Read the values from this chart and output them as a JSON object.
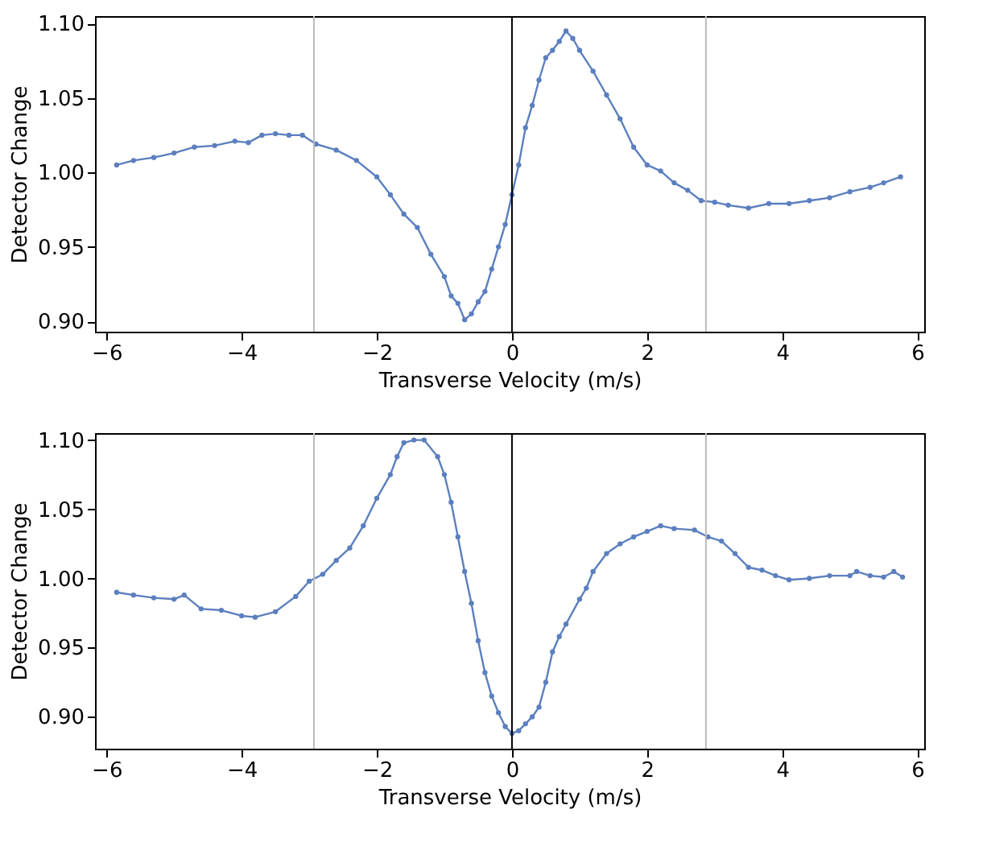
{
  "chart_data": [
    {
      "type": "line",
      "xlabel": "Transverse Velocity (m/s)",
      "ylabel": "Detector Change",
      "marker": "circle",
      "line_style": "solid",
      "grid": false,
      "xlim": [
        -6.17,
        6.1
      ],
      "ylim": [
        0.893,
        1.105
      ],
      "xticks": [
        -6,
        -4,
        -2,
        0,
        2,
        4,
        6
      ],
      "yticks": [
        {
          "value": 0.9,
          "label": "0.90"
        },
        {
          "value": 0.95,
          "label": "0.95"
        },
        {
          "value": 1.0,
          "label": "1.00"
        },
        {
          "value": 1.05,
          "label": "1.05"
        },
        {
          "value": 1.1,
          "label": "1.10"
        }
      ],
      "ref_lines": [
        {
          "axis": "x",
          "value": -2.93,
          "color": "#bbbbbb"
        },
        {
          "axis": "x",
          "value": 0,
          "color": "#000000"
        },
        {
          "axis": "x",
          "value": 2.87,
          "color": "#bbbbbb"
        }
      ],
      "series": [
        {
          "color": "#5b7fbf",
          "x": [
            -5.85,
            -5.6,
            -5.3,
            -5.0,
            -4.7,
            -4.4,
            -4.1,
            -3.9,
            -3.7,
            -3.5,
            -3.3,
            -3.1,
            -2.9,
            -2.6,
            -2.3,
            -2.0,
            -1.8,
            -1.6,
            -1.4,
            -1.2,
            -1.0,
            -0.9,
            -0.8,
            -0.7,
            -0.6,
            -0.5,
            -0.4,
            -0.3,
            -0.2,
            -0.1,
            0,
            0.1,
            0.2,
            0.3,
            0.4,
            0.5,
            0.6,
            0.7,
            0.8,
            0.9,
            1.0,
            1.2,
            1.4,
            1.6,
            1.8,
            2.0,
            2.2,
            2.4,
            2.6,
            2.8,
            3.0,
            3.2,
            3.5,
            3.8,
            4.1,
            4.4,
            4.7,
            5.0,
            5.3,
            5.5,
            5.75
          ],
          "values": [
            1.005,
            1.008,
            1.01,
            1.013,
            1.017,
            1.018,
            1.021,
            1.02,
            1.025,
            1.026,
            1.025,
            1.025,
            1.019,
            1.015,
            1.008,
            0.997,
            0.985,
            0.972,
            0.963,
            0.945,
            0.93,
            0.917,
            0.912,
            0.901,
            0.905,
            0.913,
            0.92,
            0.935,
            0.95,
            0.965,
            0.985,
            1.005,
            1.03,
            1.045,
            1.062,
            1.077,
            1.082,
            1.088,
            1.095,
            1.09,
            1.082,
            1.068,
            1.052,
            1.036,
            1.017,
            1.005,
            1.001,
            0.993,
            0.988,
            0.981,
            0.98,
            0.978,
            0.976,
            0.979,
            0.979,
            0.981,
            0.983,
            0.987,
            0.99,
            0.993,
            0.997
          ]
        }
      ]
    },
    {
      "type": "line",
      "xlabel": "Transverse Velocity (m/s)",
      "ylabel": "Detector Change",
      "marker": "circle",
      "line_style": "solid",
      "grid": false,
      "xlim": [
        -6.17,
        6.1
      ],
      "ylim": [
        0.877,
        1.105
      ],
      "xticks": [
        -6,
        -4,
        -2,
        0,
        2,
        4,
        6
      ],
      "yticks": [
        {
          "value": 0.9,
          "label": "0.90"
        },
        {
          "value": 0.95,
          "label": "0.95"
        },
        {
          "value": 1.0,
          "label": "1.00"
        },
        {
          "value": 1.05,
          "label": "1.05"
        },
        {
          "value": 1.1,
          "label": "1.10"
        }
      ],
      "ref_lines": [
        {
          "axis": "x",
          "value": -2.93,
          "color": "#bbbbbb"
        },
        {
          "axis": "x",
          "value": 0,
          "color": "#000000"
        },
        {
          "axis": "x",
          "value": 2.87,
          "color": "#bbbbbb"
        }
      ],
      "series": [
        {
          "color": "#5b7fbf",
          "x": [
            -5.85,
            -5.6,
            -5.3,
            -5.0,
            -4.85,
            -4.6,
            -4.3,
            -4.0,
            -3.8,
            -3.5,
            -3.2,
            -3.0,
            -2.8,
            -2.6,
            -2.4,
            -2.2,
            -2.0,
            -1.8,
            -1.7,
            -1.6,
            -1.45,
            -1.3,
            -1.1,
            -1.0,
            -0.9,
            -0.8,
            -0.7,
            -0.6,
            -0.5,
            -0.4,
            -0.3,
            -0.2,
            -0.1,
            0,
            0.1,
            0.2,
            0.3,
            0.4,
            0.5,
            0.6,
            0.7,
            0.8,
            1.0,
            1.1,
            1.2,
            1.4,
            1.6,
            1.8,
            2.0,
            2.2,
            2.4,
            2.7,
            2.9,
            3.1,
            3.3,
            3.5,
            3.7,
            3.9,
            4.1,
            4.4,
            4.7,
            5.0,
            5.1,
            5.3,
            5.5,
            5.65,
            5.78
          ],
          "values": [
            0.99,
            0.988,
            0.986,
            0.985,
            0.988,
            0.978,
            0.977,
            0.973,
            0.972,
            0.976,
            0.987,
            0.998,
            1.003,
            1.013,
            1.022,
            1.038,
            1.058,
            1.075,
            1.088,
            1.098,
            1.1,
            1.1,
            1.088,
            1.075,
            1.055,
            1.03,
            1.005,
            0.982,
            0.955,
            0.932,
            0.915,
            0.903,
            0.893,
            0.888,
            0.89,
            0.895,
            0.9,
            0.907,
            0.925,
            0.947,
            0.958,
            0.967,
            0.985,
            0.993,
            1.005,
            1.018,
            1.025,
            1.03,
            1.034,
            1.038,
            1.036,
            1.035,
            1.03,
            1.027,
            1.018,
            1.008,
            1.006,
            1.002,
            0.999,
            1.0,
            1.002,
            1.002,
            1.005,
            1.002,
            1.001,
            1.005,
            1.001
          ]
        }
      ]
    }
  ]
}
